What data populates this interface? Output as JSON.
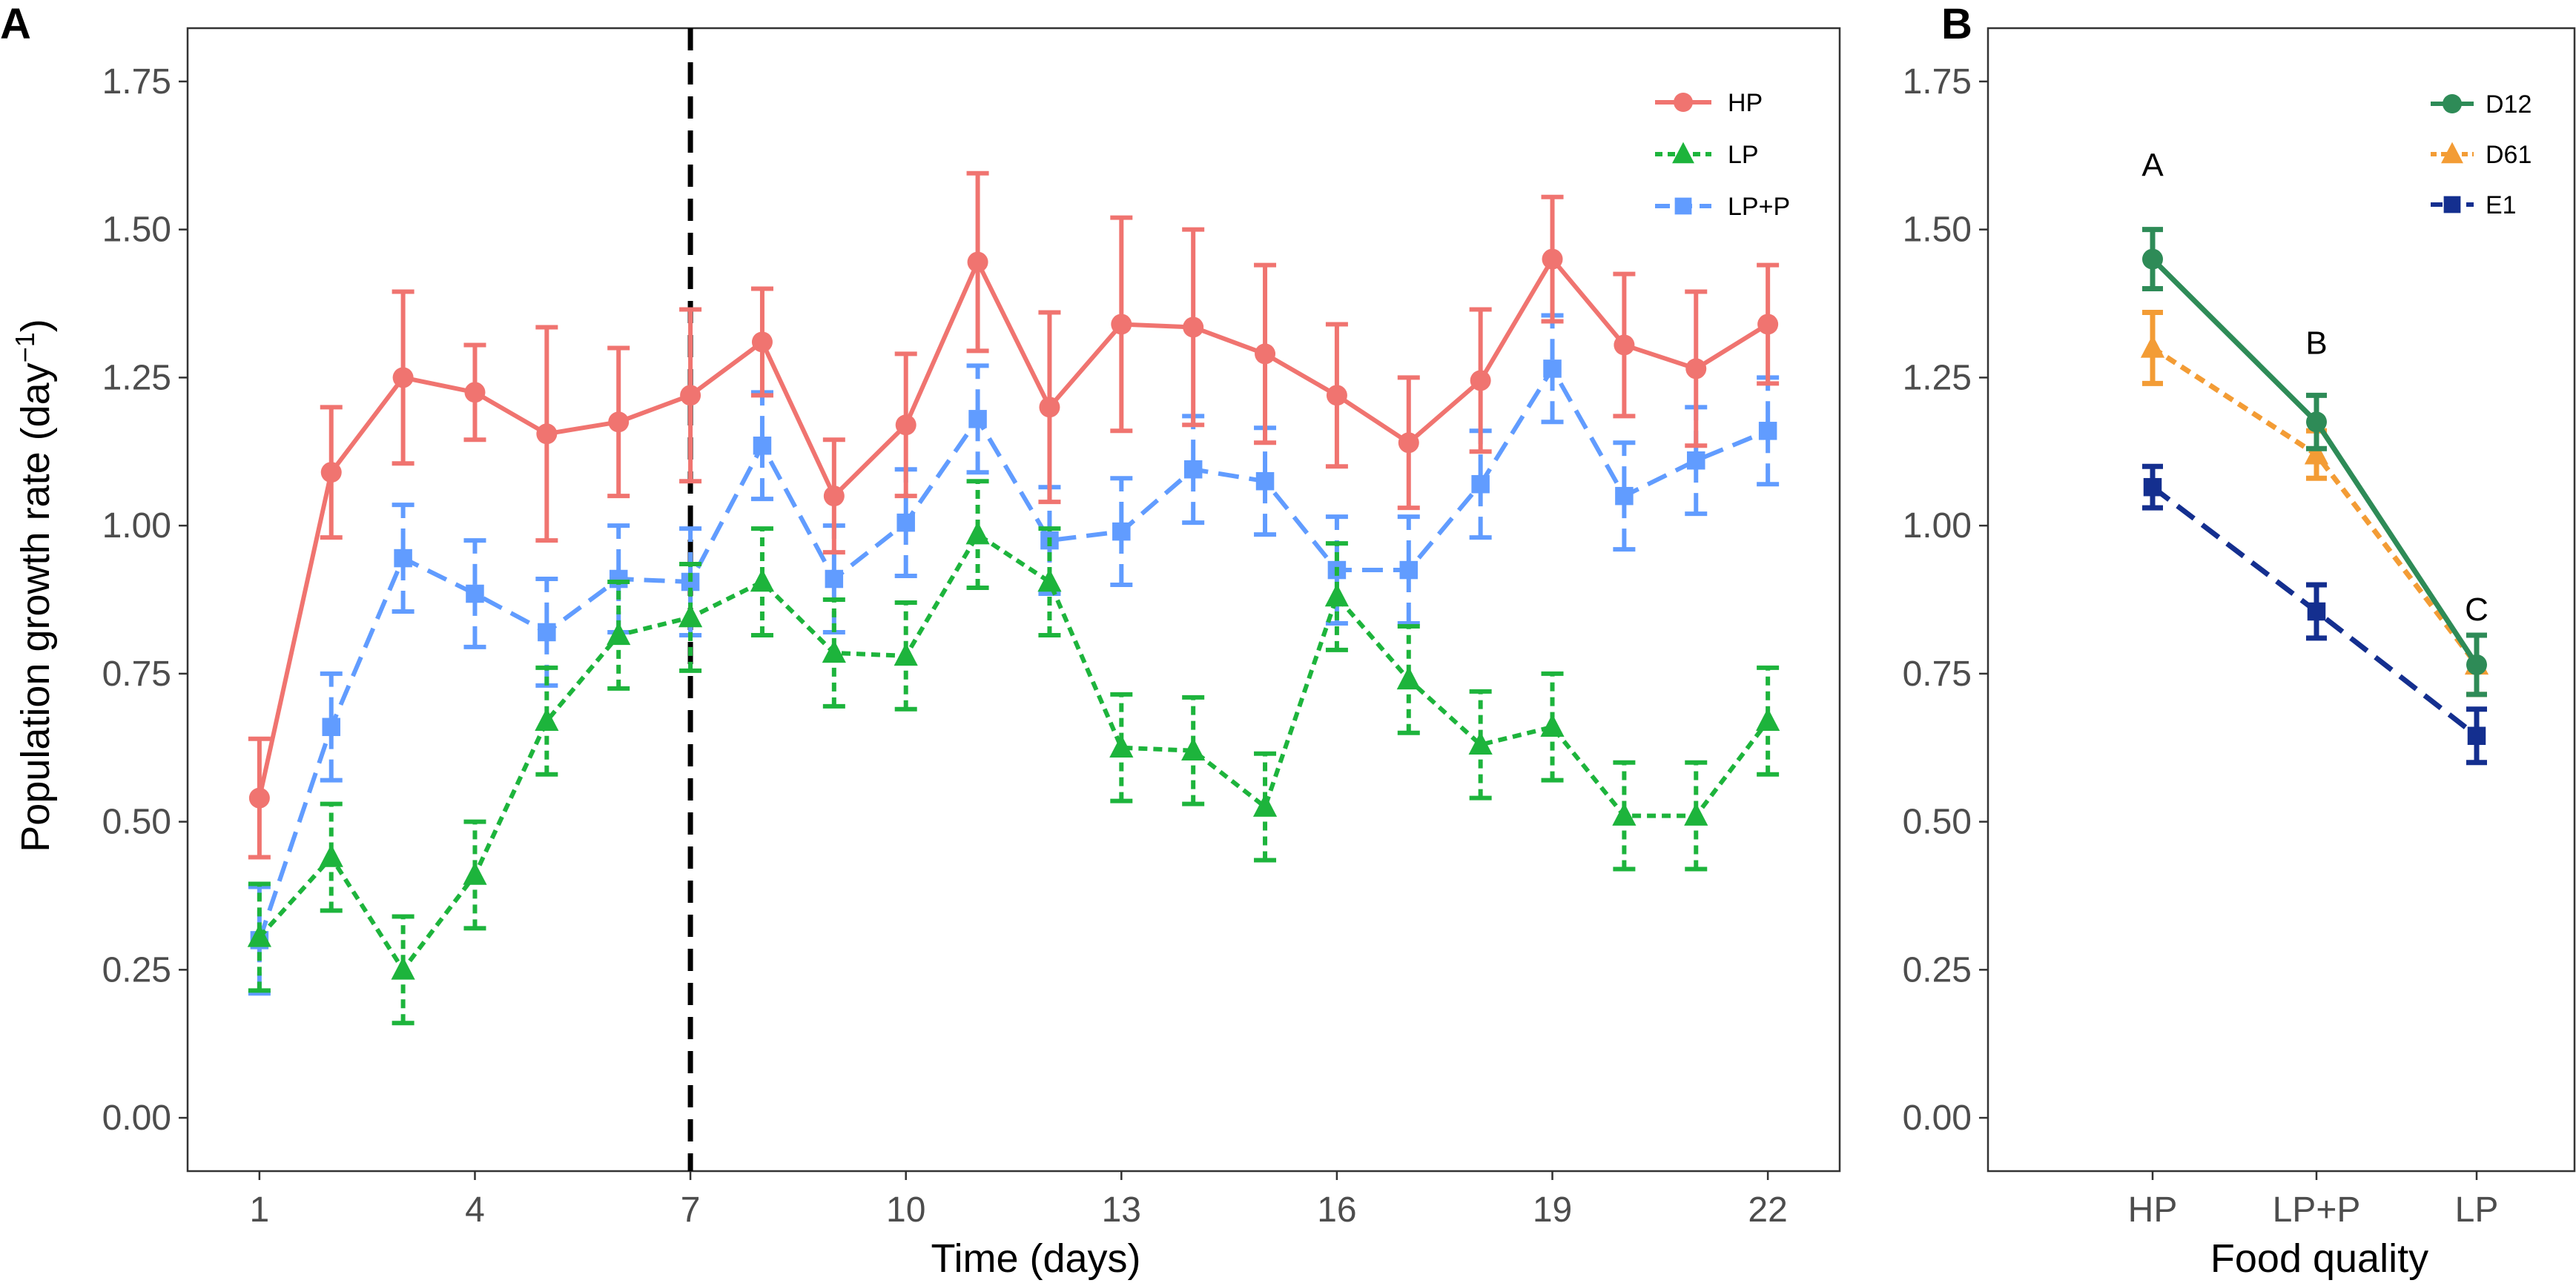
{
  "chart_data": [
    {
      "type": "line",
      "panel_label": "A",
      "xlabel": "Time (days)",
      "ylabel_main": "Population growth rate (day",
      "ylabel_sup": "−1",
      "ylabel_end": ")",
      "xlim": [
        0,
        23
      ],
      "ylim": [
        -0.09,
        1.84
      ],
      "x_ticks": [
        1,
        4,
        7,
        10,
        13,
        16,
        19,
        22
      ],
      "x_tick_labels": [
        "1",
        "4",
        "7",
        "10",
        "13",
        "16",
        "19",
        "22"
      ],
      "y_ticks": [
        0,
        0.25,
        0.5,
        0.75,
        1.0,
        1.25,
        1.5,
        1.75
      ],
      "y_tick_labels": [
        "0.00",
        "0.25",
        "0.50",
        "0.75",
        "1.00",
        "1.25",
        "1.50",
        "1.75"
      ],
      "vline_x": 7,
      "grid": false,
      "legend_position": "top-right",
      "x": [
        1,
        2,
        3,
        4,
        5,
        6,
        7,
        8,
        9,
        10,
        11,
        12,
        13,
        14,
        15,
        16,
        17,
        18,
        19,
        20,
        21,
        22
      ],
      "series": [
        {
          "name": "HP",
          "color": "#F07470",
          "marker": "circle",
          "linestyle": "solid",
          "values": [
            0.54,
            1.09,
            1.25,
            1.225,
            1.155,
            1.175,
            1.22,
            1.31,
            1.05,
            1.17,
            1.445,
            1.2,
            1.34,
            1.335,
            1.29,
            1.22,
            1.14,
            1.245,
            1.45,
            1.305,
            1.265,
            1.34
          ],
          "err": [
            0.1,
            0.11,
            0.145,
            0.08,
            0.18,
            0.125,
            0.145,
            0.09,
            0.095,
            0.12,
            0.15,
            0.16,
            0.18,
            0.165,
            0.15,
            0.12,
            0.11,
            0.12,
            0.105,
            0.12,
            0.13,
            0.1
          ]
        },
        {
          "name": "LP",
          "color": "#1DB43C",
          "marker": "triangle",
          "linestyle": "dotted",
          "values": [
            0.305,
            0.44,
            0.25,
            0.41,
            0.67,
            0.815,
            0.845,
            0.905,
            0.785,
            0.78,
            0.985,
            0.905,
            0.625,
            0.62,
            0.525,
            0.88,
            0.74,
            0.63,
            0.66,
            0.51,
            0.51,
            0.67
          ]
        },
        {
          "name": "LP+P",
          "color": "#619CFF",
          "marker": "square",
          "linestyle": "dashed",
          "values": [
            0.3,
            0.66,
            0.945,
            0.885,
            0.82,
            0.91,
            0.905,
            1.135,
            0.91,
            1.005,
            1.18,
            0.975,
            0.99,
            1.095,
            1.075,
            0.925,
            0.925,
            1.07,
            1.265,
            1.05,
            1.11,
            1.16
          ]
        }
      ]
    },
    {
      "type": "line",
      "panel_label": "B",
      "xlabel": "Food quality",
      "categories": [
        "HP",
        "LP+P",
        "LP"
      ],
      "ylim": [
        -0.09,
        1.84
      ],
      "y_ticks": [
        0,
        0.25,
        0.5,
        0.75,
        1.0,
        1.25,
        1.5,
        1.75
      ],
      "y_tick_labels": [
        "0.00",
        "0.25",
        "0.50",
        "0.75",
        "1.00",
        "1.25",
        "1.50",
        "1.75"
      ],
      "grid": false,
      "legend_position": "top-right",
      "group_letters": [
        "A",
        "B",
        "C"
      ],
      "group_letter_y": [
        1.59,
        1.29,
        0.84
      ],
      "series": [
        {
          "name": "D12",
          "color": "#2E8B57",
          "marker": "circle",
          "linestyle": "solid",
          "values": [
            1.45,
            1.175,
            0.765
          ],
          "err": [
            0.05,
            0.045,
            0.05
          ]
        },
        {
          "name": "D61",
          "color": "#F39C35",
          "marker": "triangle",
          "linestyle": "dotted",
          "values": [
            1.3,
            1.12,
            0.765
          ],
          "err": [
            0.06,
            0.04,
            0.05
          ]
        },
        {
          "name": "E1",
          "color": "#142F8F",
          "marker": "square",
          "linestyle": "dashed",
          "values": [
            1.065,
            0.855,
            0.645
          ],
          "err": [
            0.035,
            0.045,
            0.045
          ]
        }
      ]
    }
  ]
}
